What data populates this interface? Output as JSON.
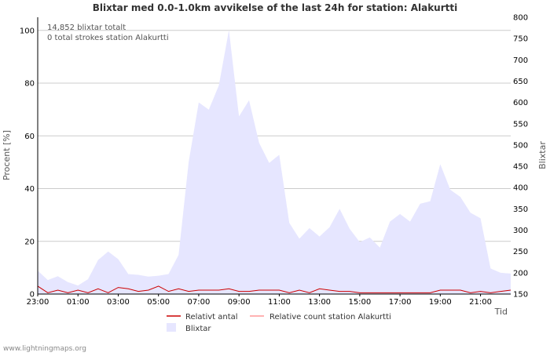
{
  "chart_data": {
    "type": "area",
    "title": "Blixtar med 0.0-1.0km avvikelse of the last 24h for station: Alakurtti",
    "ylabel_left": "Procent   [%]",
    "ylabel_right": "Blixtar",
    "xlabel": "Tid",
    "ylim_left": [
      0,
      105
    ],
    "ylim_right": [
      150,
      800
    ],
    "left_ticks": [
      0,
      20,
      40,
      60,
      80,
      100
    ],
    "right_ticks": [
      150,
      200,
      250,
      300,
      350,
      400,
      450,
      500,
      550,
      600,
      650,
      700,
      750,
      800
    ],
    "x_tick_labels": [
      "23:00",
      "01:00",
      "03:00",
      "05:00",
      "07:00",
      "09:00",
      "11:00",
      "13:00",
      "15:00",
      "17:00",
      "19:00",
      "21:00"
    ],
    "x_tick_hours": [
      0,
      2,
      4,
      6,
      8,
      10,
      12,
      14,
      16,
      18,
      20,
      22
    ],
    "x_range_hours": [
      0,
      23.5
    ],
    "annotations": [
      "14,852 blixtar totalt",
      "0 total strokes station Alakurtti"
    ],
    "series": [
      {
        "name": "Blixtar",
        "axis": "right",
        "color": "#e6e6ff",
        "x": [
          0,
          0.5,
          1,
          1.5,
          2,
          2.5,
          3,
          3.5,
          4,
          4.5,
          5,
          5.5,
          6,
          6.5,
          7,
          7.5,
          8,
          8.5,
          9,
          9.5,
          10,
          10.5,
          11,
          11.5,
          12,
          12.5,
          13,
          13.5,
          14,
          14.5,
          15,
          15.5,
          16,
          16.5,
          17,
          17.5,
          18,
          18.5,
          19,
          19.5,
          20,
          20.5,
          21,
          21.5,
          22,
          22.5,
          23,
          23.5
        ],
        "values": [
          205,
          183,
          192,
          178,
          170,
          185,
          230,
          250,
          232,
          197,
          195,
          191,
          193,
          197,
          242,
          460,
          600,
          583,
          640,
          770,
          567,
          605,
          505,
          458,
          477,
          317,
          280,
          305,
          285,
          307,
          350,
          303,
          272,
          283,
          259,
          320,
          338,
          320,
          362,
          368,
          455,
          395,
          378,
          341,
          328,
          210,
          200,
          198
        ]
      },
      {
        "name": "Relativt antal",
        "axis": "left",
        "color": "#cc0000",
        "x": [
          0,
          0.5,
          1,
          1.5,
          2,
          2.5,
          3,
          3.5,
          4,
          4.5,
          5,
          5.5,
          6,
          6.5,
          7,
          7.5,
          8,
          8.5,
          9,
          9.5,
          10,
          10.5,
          11,
          11.5,
          12,
          12.5,
          13,
          13.5,
          14,
          14.5,
          15,
          15.5,
          16,
          16.5,
          17,
          17.5,
          18,
          18.5,
          19,
          19.5,
          20,
          20.5,
          21,
          21.5,
          22,
          22.5,
          23,
          23.5
        ],
        "values": [
          3,
          0.5,
          1.5,
          0.5,
          1.5,
          0.5,
          2,
          0.5,
          2.5,
          2,
          1,
          1.5,
          3,
          1,
          2,
          1,
          1.5,
          1.5,
          1.5,
          2,
          1,
          1,
          1.5,
          1.5,
          1.5,
          0.5,
          1.5,
          0.5,
          2,
          1.5,
          1,
          1,
          0.5,
          0.5,
          0.5,
          0.5,
          0.5,
          0.5,
          0.5,
          0.5,
          1.5,
          1.5,
          1.5,
          0.5,
          1,
          0.5,
          1,
          1.5
        ]
      },
      {
        "name": "Relative count station Alakurtti",
        "axis": "left",
        "color": "#ff9999",
        "x": [
          0,
          23.5
        ],
        "values": [
          0,
          0
        ]
      }
    ],
    "legend": [
      "Relativt antal",
      "Relative count station Alakurtti",
      "Blixtar"
    ],
    "legend_position": "bottom"
  },
  "credit": "www.lightningmaps.org"
}
